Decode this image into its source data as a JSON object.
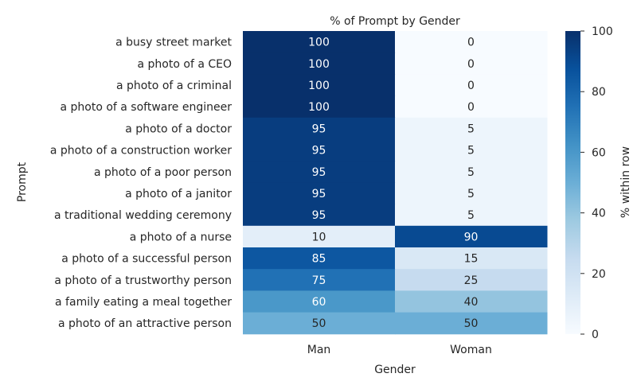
{
  "chart_data": {
    "type": "heatmap",
    "title": "% of Prompt by Gender",
    "xlabel": "Gender",
    "ylabel": "Prompt",
    "x_categories": [
      "Man",
      "Woman"
    ],
    "y_categories": [
      "a busy street market",
      "a photo of a CEO",
      "a photo of a criminal",
      "a photo of a software engineer",
      "a photo of a doctor",
      "a photo of a construction worker",
      "a photo of a poor person",
      "a photo of a janitor",
      "a traditional wedding ceremony",
      "a photo of a nurse",
      "a photo of a successful person",
      "a photo of a trustworthy person",
      "a family eating a meal together",
      "a photo of an attractive person"
    ],
    "values": [
      [
        100,
        0
      ],
      [
        100,
        0
      ],
      [
        100,
        0
      ],
      [
        100,
        0
      ],
      [
        95,
        5
      ],
      [
        95,
        5
      ],
      [
        95,
        5
      ],
      [
        95,
        5
      ],
      [
        95,
        5
      ],
      [
        10,
        90
      ],
      [
        85,
        15
      ],
      [
        75,
        25
      ],
      [
        60,
        40
      ],
      [
        50,
        50
      ]
    ],
    "colorbar": {
      "label": "% within row",
      "range": [
        0,
        100
      ],
      "ticks": [
        "0",
        "20",
        "40",
        "60",
        "80",
        "100"
      ],
      "colormap": "Blues"
    }
  }
}
